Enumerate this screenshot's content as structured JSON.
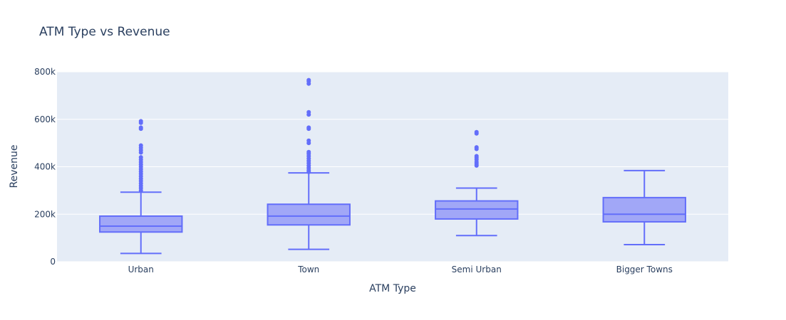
{
  "chart_data": {
    "type": "box",
    "title": "ATM Type vs Revenue",
    "xlabel": "ATM Type",
    "ylabel": "Revenue",
    "ylim": [
      0,
      800000
    ],
    "yticks": [
      {
        "value": 0,
        "label": "0"
      },
      {
        "value": 200000,
        "label": "200k"
      },
      {
        "value": 400000,
        "label": "400k"
      },
      {
        "value": 600000,
        "label": "600k"
      },
      {
        "value": 800000,
        "label": "800k"
      }
    ],
    "grid": true,
    "colors": {
      "box_line": "#636efa",
      "box_fill": "#a1a7f7",
      "plot_bg": "#e5ecf6",
      "grid": "#ffffff",
      "text": "#2a3f5f"
    },
    "categories": [
      "Urban",
      "Town",
      "Semi Urban",
      "Bigger Towns"
    ],
    "boxes": [
      {
        "category": "Urban",
        "lowerfence": 35000,
        "q1": 125000,
        "median": 150000,
        "q3": 192000,
        "upperfence": 293000,
        "outliers": [
          300000,
          310000,
          320000,
          330000,
          340000,
          350000,
          360000,
          370000,
          380000,
          390000,
          400000,
          410000,
          420000,
          430000,
          440000,
          460000,
          470000,
          480000,
          490000,
          560000,
          565000,
          585000,
          592000
        ]
      },
      {
        "category": "Town",
        "lowerfence": 52000,
        "q1": 155000,
        "median": 192000,
        "q3": 242000,
        "upperfence": 374000,
        "outliers": [
          378000,
          385000,
          395000,
          405000,
          415000,
          425000,
          435000,
          445000,
          455000,
          462000,
          500000,
          510000,
          560000,
          565000,
          620000,
          630000,
          750000,
          760000,
          765000
        ]
      },
      {
        "category": "Semi Urban",
        "lowerfence": 110000,
        "q1": 180000,
        "median": 222000,
        "q3": 256000,
        "upperfence": 310000,
        "outliers": [
          405000,
          412000,
          420000,
          430000,
          438000,
          445000,
          475000,
          482000,
          540000,
          546000
        ]
      },
      {
        "category": "Bigger Towns",
        "lowerfence": 72000,
        "q1": 168000,
        "median": 200000,
        "q3": 270000,
        "upperfence": 384000,
        "outliers": []
      }
    ]
  }
}
